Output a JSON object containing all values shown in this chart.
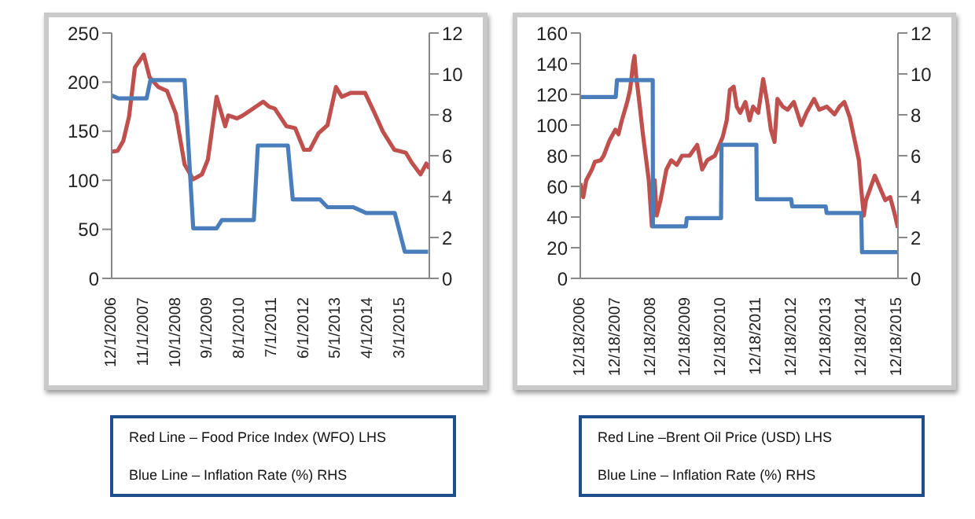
{
  "chart_data": [
    {
      "type": "line",
      "ylim": [
        0,
        250
      ],
      "yticks": [
        0,
        50,
        100,
        150,
        200,
        250
      ],
      "y2lim": [
        0,
        12
      ],
      "y2ticks": [
        0,
        2,
        4,
        6,
        8,
        10,
        12
      ],
      "xlim": [
        "2006-12-01",
        "2016-01-01"
      ],
      "xticks": [
        {
          "value": "2006-12-01",
          "label": "12/1/2006"
        },
        {
          "value": "2007-11-01",
          "label": "11/1/2007"
        },
        {
          "value": "2008-10-01",
          "label": "10/1/2008"
        },
        {
          "value": "2009-09-01",
          "label": "9/1/2009"
        },
        {
          "value": "2010-08-01",
          "label": "8/1/2010"
        },
        {
          "value": "2011-07-01",
          "label": "7/1/2011"
        },
        {
          "value": "2012-06-01",
          "label": "6/1/2012"
        },
        {
          "value": "2013-05-01",
          "label": "5/1/2013"
        },
        {
          "value": "2014-04-01",
          "label": "4/1/2014"
        },
        {
          "value": "2015-03-01",
          "label": "3/1/2015"
        }
      ],
      "annotations": [
        "Red Line – Food Price Index (WFO) LHS",
        "Blue Line – Inflation Rate (%) RHS"
      ],
      "series": [
        {
          "color": "#c0504d",
          "x": [
            "2006-12-01",
            "2007-02-01",
            "2007-04-01",
            "2007-06-01",
            "2007-08-01",
            "2007-11-01",
            "2008-01-01",
            "2008-04-01",
            "2008-07-01",
            "2008-10-01",
            "2009-01-01",
            "2009-04-01",
            "2009-07-01",
            "2009-09-01",
            "2009-12-01",
            "2010-03-01",
            "2010-04-01",
            "2010-07-01",
            "2010-09-01",
            "2010-12-01",
            "2011-04-01",
            "2011-06-01",
            "2011-08-01",
            "2011-12-01",
            "2012-03-01",
            "2012-06-01",
            "2012-08-01",
            "2012-11-01",
            "2013-02-01",
            "2013-05-01",
            "2013-07-01",
            "2013-10-01",
            "2014-03-01",
            "2014-06-01",
            "2014-09-01",
            "2015-01-01",
            "2015-05-01",
            "2015-07-01",
            "2015-10-01",
            "2015-12-01",
            "2016-01-01"
          ],
          "values": [
            129,
            130,
            140,
            165,
            215,
            228,
            205,
            195,
            191,
            168,
            116,
            101,
            106,
            121,
            185,
            155,
            166,
            163,
            166,
            172,
            180,
            175,
            173,
            155,
            153,
            131,
            131,
            148,
            156,
            195,
            185,
            189,
            189,
            170,
            150,
            131,
            128,
            118,
            106,
            117,
            112
          ]
        },
        {
          "color": "#4a7ebb",
          "axis": "y2",
          "x": [
            "2006-12-01",
            "2007-02-10",
            "2007-12-01",
            "2008-01-10",
            "2009-01-01",
            "2009-04-01",
            "2009-12-01",
            "2010-01-25",
            "2010-12-25",
            "2011-02-05",
            "2011-12-15",
            "2012-02-05",
            "2012-11-15",
            "2013-02-01",
            "2013-11-01",
            "2014-03-12",
            "2015-01-05",
            "2015-04-20",
            "2015-12-20"
          ],
          "values": [
            8.95,
            8.8,
            8.8,
            9.7,
            9.7,
            2.45,
            2.45,
            2.85,
            2.85,
            6.5,
            6.5,
            3.86,
            3.86,
            3.48,
            3.48,
            3.2,
            3.2,
            1.3,
            1.3
          ]
        }
      ]
    },
    {
      "type": "line",
      "ylim": [
        0,
        160
      ],
      "yticks": [
        0,
        20,
        40,
        60,
        80,
        100,
        120,
        140,
        160
      ],
      "y2lim": [
        0,
        12
      ],
      "y2ticks": [
        0,
        2,
        4,
        6,
        8,
        10,
        12
      ],
      "xlim": [
        "2006-12-18",
        "2015-12-28"
      ],
      "xticks": [
        {
          "value": "2006-12-18",
          "label": "12/18/2006"
        },
        {
          "value": "2007-12-18",
          "label": "12/18/2007"
        },
        {
          "value": "2008-12-18",
          "label": "12/18/2008"
        },
        {
          "value": "2009-12-18",
          "label": "12/18/2009"
        },
        {
          "value": "2010-12-18",
          "label": "12/18/2010"
        },
        {
          "value": "2011-12-18",
          "label": "12/18/2011"
        },
        {
          "value": "2012-12-18",
          "label": "12/18/2012"
        },
        {
          "value": "2013-12-18",
          "label": "12/18/2013"
        },
        {
          "value": "2014-12-18",
          "label": "12/18/2014"
        },
        {
          "value": "2015-12-18",
          "label": "12/18/2015"
        }
      ],
      "annotations": [
        "Red Line –Brent Oil Price (USD) LHS",
        "Blue Line – Inflation Rate (%) RHS"
      ],
      "series": [
        {
          "color": "#c0504d",
          "x": [
            "2006-12-18",
            "2007-01-18",
            "2007-02-18",
            "2007-04-18",
            "2007-05-18",
            "2007-07-18",
            "2007-08-18",
            "2007-10-18",
            "2007-12-18",
            "2008-01-18",
            "2008-02-18",
            "2008-04-18",
            "2008-05-18",
            "2008-06-18",
            "2008-07-03",
            "2008-07-18",
            "2008-08-18",
            "2008-09-28",
            "2008-11-28",
            "2008-12-30",
            "2009-01-28",
            "2009-02-18",
            "2009-03-30",
            "2009-05-30",
            "2009-07-18",
            "2009-09-15",
            "2009-11-08",
            "2010-01-25",
            "2010-04-15",
            "2010-06-05",
            "2010-07-28",
            "2010-10-15",
            "2011-01-03",
            "2011-02-15",
            "2011-03-20",
            "2011-04-28",
            "2011-05-30",
            "2011-07-05",
            "2011-08-28",
            "2011-10-10",
            "2011-11-15",
            "2012-01-08",
            "2012-02-28",
            "2012-04-10",
            "2012-05-18",
            "2012-06-25",
            "2012-07-25",
            "2012-09-18",
            "2012-11-08",
            "2013-01-12",
            "2013-03-30",
            "2013-05-22",
            "2013-08-10",
            "2013-10-02",
            "2013-12-20",
            "2014-03-10",
            "2014-04-30",
            "2014-06-20",
            "2014-08-15",
            "2014-10-05",
            "2014-11-18",
            "2014-12-12",
            "2015-01-08",
            "2015-01-30",
            "2015-03-12",
            "2015-05-02",
            "2015-06-25",
            "2015-08-18",
            "2015-10-08",
            "2015-11-20",
            "2015-12-28"
          ],
          "values": [
            62,
            53,
            64,
            71,
            76,
            77,
            80,
            90,
            97,
            94,
            102,
            115,
            123,
            140,
            145,
            133,
            117,
            94,
            64,
            34,
            64,
            41,
            51,
            71,
            77,
            74,
            80,
            80,
            87,
            71,
            77,
            80,
            92,
            103,
            123,
            125,
            112,
            108,
            115,
            103,
            112,
            108,
            130,
            115,
            97,
            89,
            117,
            112,
            110,
            115,
            100,
            108,
            117,
            110,
            112,
            107,
            112,
            115,
            105,
            90,
            77,
            58,
            41,
            51,
            58,
            67,
            59,
            51,
            53,
            43,
            33
          ]
        },
        {
          "color": "#4a7ebb",
          "axis": "y2",
          "x": [
            "2006-12-18",
            "2007-12-21",
            "2008-01-03",
            "2009-01-08",
            "2009-01-10",
            "2009-12-18",
            "2009-12-28",
            "2010-12-18",
            "2010-12-23",
            "2011-12-20",
            "2011-12-25",
            "2012-12-15",
            "2012-12-25",
            "2013-12-08",
            "2013-12-18",
            "2014-12-12",
            "2014-12-20",
            "2015-12-28"
          ],
          "values": [
            8.87,
            8.87,
            9.7,
            9.7,
            2.54,
            2.54,
            2.95,
            2.95,
            6.53,
            6.53,
            3.87,
            3.87,
            3.52,
            3.52,
            3.2,
            3.2,
            1.28,
            1.28
          ]
        }
      ]
    }
  ]
}
